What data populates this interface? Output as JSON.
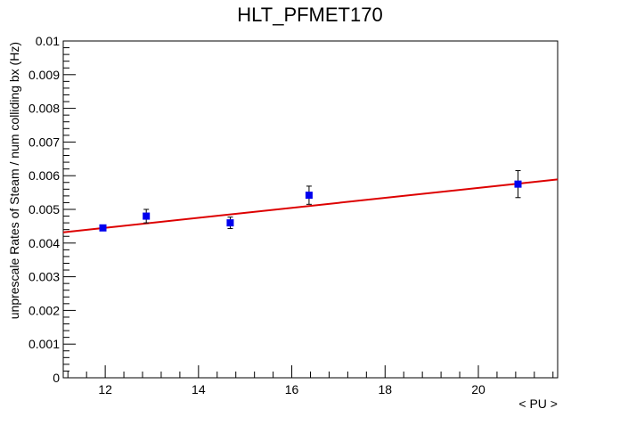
{
  "chart_data": {
    "type": "scatter",
    "title": "HLT_PFMET170",
    "xlabel": "< PU >",
    "ylabel": "unprescale Rates of Steam / num colliding bx (Hz)",
    "xlim": [
      11.1,
      21.7
    ],
    "ylim": [
      0,
      0.01
    ],
    "x_ticks": [
      12,
      14,
      16,
      18,
      20
    ],
    "x_tick_labels": [
      "12",
      "14",
      "16",
      "18",
      "20"
    ],
    "y_ticks": [
      0,
      0.001,
      0.002,
      0.003,
      0.004,
      0.005,
      0.006,
      0.007,
      0.008,
      0.009,
      0.01
    ],
    "y_tick_labels": [
      "0",
      "0.001",
      "0.002",
      "0.003",
      "0.004",
      "0.005",
      "0.006",
      "0.007",
      "0.008",
      "0.009",
      "0.01"
    ],
    "grid": false,
    "series": [
      {
        "kind": "points",
        "color": "#0000ee",
        "x": [
          11.95,
          12.88,
          14.68,
          16.37,
          20.85
        ],
        "y": [
          0.00445,
          0.0048,
          0.0046,
          0.00542,
          0.00575
        ],
        "yerr": [
          7e-05,
          0.0002,
          0.00017,
          0.00027,
          0.0004
        ]
      },
      {
        "kind": "fit-line",
        "color": "#dd0000",
        "x": [
          11.1,
          21.7
        ],
        "y": [
          0.00432,
          0.00589
        ]
      }
    ]
  }
}
